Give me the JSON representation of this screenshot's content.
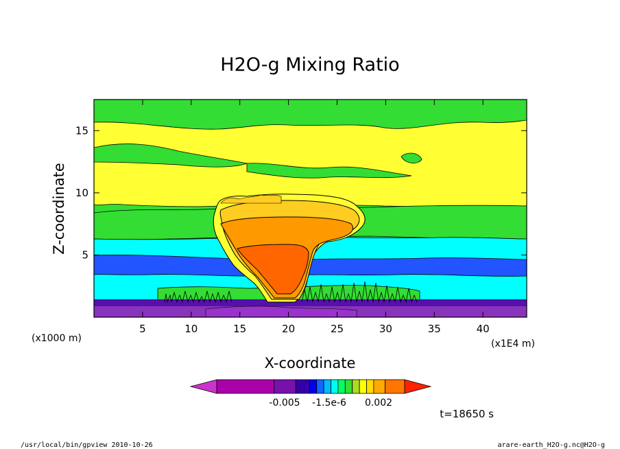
{
  "chart_data": {
    "type": "heatmap",
    "title": "H2O-g Mixing Ratio",
    "xlabel": "X-coordinate",
    "ylabel": "Z-coordinate",
    "x_unit_left": "(x1000 m)",
    "x_unit_right": "(x1E4 m)",
    "xlim": [
      0,
      44.5
    ],
    "ylim": [
      0,
      17.5
    ],
    "x_ticks": [
      5,
      10,
      15,
      20,
      25,
      30,
      35,
      40
    ],
    "y_ticks": [
      5,
      10,
      15
    ],
    "colorbar": {
      "labels": [
        "-0.005",
        "-1.5e-6",
        "0.002"
      ],
      "colors": [
        "#cc33cc",
        "#aa00aa",
        "#7711aa",
        "#3300aa",
        "#0000ee",
        "#1166ff",
        "#00bbff",
        "#00ffee",
        "#00ff66",
        "#33dd33",
        "#aadd22",
        "#ffff00",
        "#ffdd00",
        "#ffaa00",
        "#ff7700",
        "#ff2200"
      ]
    },
    "time_label": "t=18650 s"
  },
  "footer": {
    "left": "/usr/local/bin/gpview  2010-10-26",
    "right": "arare-earth_H2O-g.nc@H2O-g"
  },
  "colors": {
    "purple": "#8833bb",
    "dark_purple": "#5511aa",
    "blue": "#2255ff",
    "cyan": "#00ffff",
    "green": "#33dd33",
    "yellow": "#ffff33",
    "light_orange": "#ffcc22",
    "orange": "#ff9900",
    "dark_orange": "#ff6600"
  }
}
